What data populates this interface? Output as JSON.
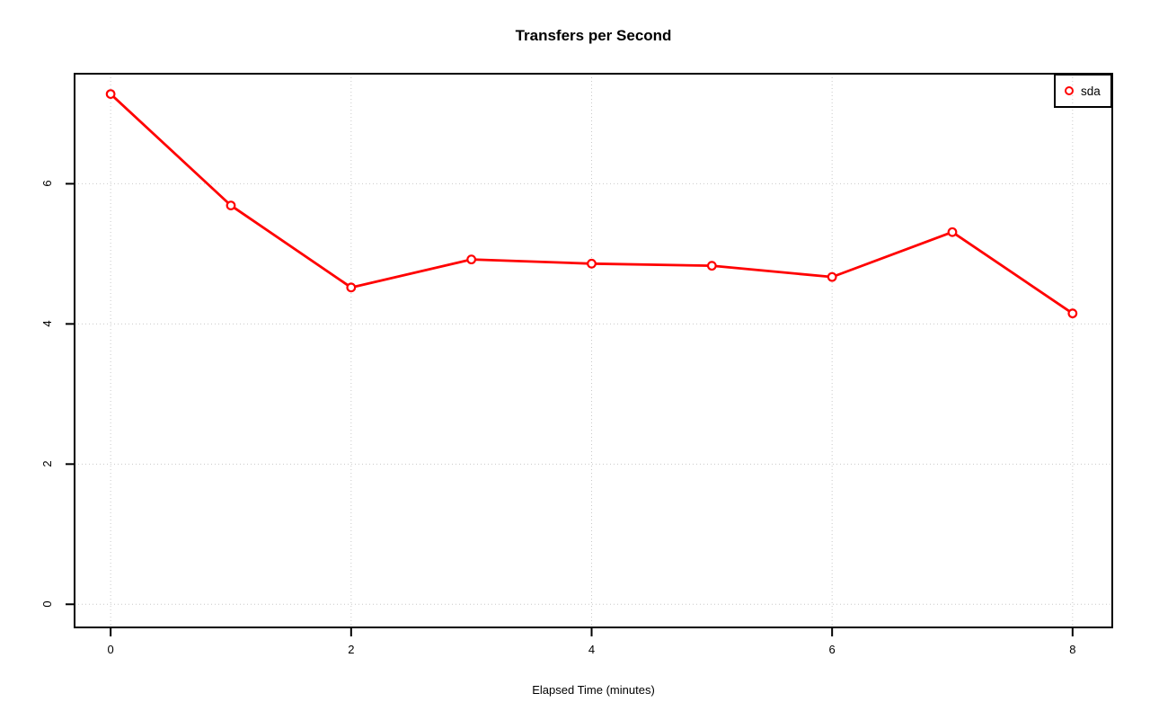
{
  "page": {
    "background": "#ffffff"
  },
  "chart_data": {
    "type": "line",
    "title": "Transfers per Second",
    "xlabel": "Elapsed Time (minutes)",
    "ylabel": "",
    "x": [
      0,
      1,
      2,
      3,
      4,
      5,
      6,
      7,
      8
    ],
    "series": [
      {
        "name": "sda",
        "color": "#ff0000",
        "marker": "open-circle",
        "values": [
          7.28,
          5.69,
          4.52,
          4.92,
          4.86,
          4.83,
          4.67,
          5.31,
          4.15
        ]
      }
    ],
    "xticks": [
      0,
      2,
      4,
      6,
      8
    ],
    "yticks": [
      0,
      2,
      4,
      6
    ],
    "xlim": [
      -0.3,
      8.33
    ],
    "ylim": [
      -0.33,
      7.57
    ],
    "grid": true,
    "grid_style": "dotted",
    "grid_color": "#c9c9c9",
    "axis_color": "#000000",
    "background_color": "#ffffff",
    "legend_position": "top-right"
  },
  "legend": {
    "items": [
      {
        "label": "sda",
        "marker": "open-circle",
        "color": "#ff0000"
      }
    ]
  }
}
